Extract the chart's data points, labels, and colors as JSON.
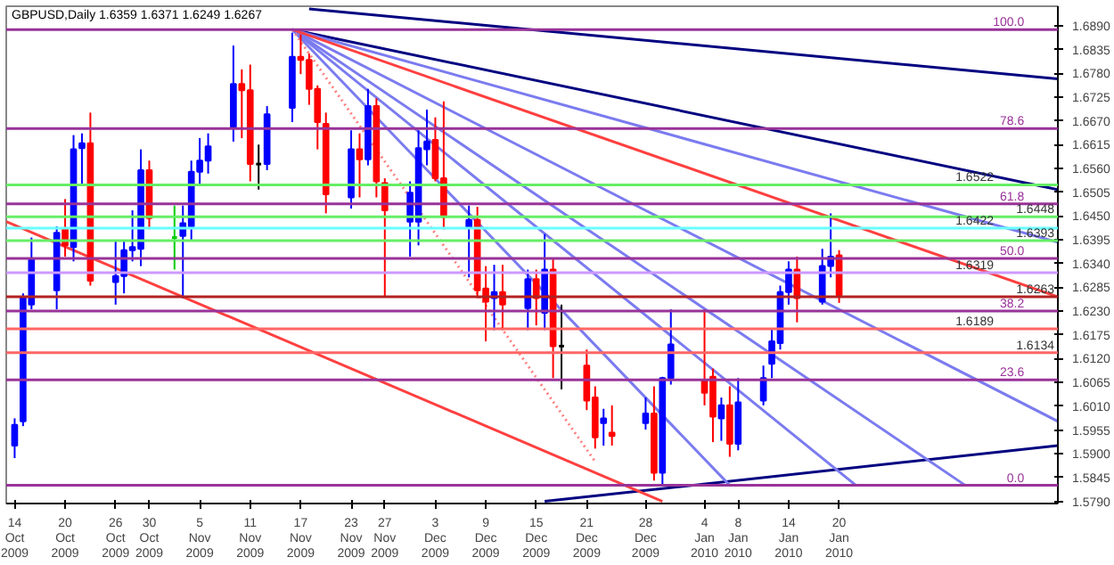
{
  "chart_data": {
    "type": "candlestick",
    "title": "GBPUSD,Daily  1.6359 1.6371 1.6249 1.6267",
    "x": [
      "2009-10-14",
      "2009-10-15",
      "2009-10-16",
      "2009-10-19",
      "2009-10-20",
      "2009-10-21",
      "2009-10-22",
      "2009-10-23",
      "2009-10-26",
      "2009-10-27",
      "2009-10-28",
      "2009-10-29",
      "2009-10-30",
      "2009-11-02",
      "2009-11-03",
      "2009-11-04",
      "2009-11-05",
      "2009-11-06",
      "2009-11-09",
      "2009-11-10",
      "2009-11-11",
      "2009-11-12",
      "2009-11-13",
      "2009-11-16",
      "2009-11-17",
      "2009-11-18",
      "2009-11-19",
      "2009-11-20",
      "2009-11-23",
      "2009-11-24",
      "2009-11-25",
      "2009-11-26",
      "2009-11-27",
      "2009-11-30",
      "2009-12-01",
      "2009-12-02",
      "2009-12-03",
      "2009-12-04",
      "2009-12-07",
      "2009-12-08",
      "2009-12-09",
      "2009-12-10",
      "2009-12-11",
      "2009-12-14",
      "2009-12-15",
      "2009-12-16",
      "2009-12-17",
      "2009-12-18",
      "2009-12-21",
      "2009-12-22",
      "2009-12-23",
      "2009-12-24",
      "2009-12-28",
      "2009-12-29",
      "2009-12-30",
      "2009-12-31",
      "2010-01-04",
      "2010-01-05",
      "2010-01-06",
      "2010-01-07",
      "2010-01-08",
      "2010-01-11",
      "2010-01-12",
      "2010-01-13",
      "2010-01-14",
      "2010-01-15",
      "2010-01-18",
      "2010-01-19",
      "2010-01-20"
    ],
    "ohlc": [
      [
        1.5919,
        1.5982,
        1.589,
        1.5967
      ],
      [
        1.5975,
        1.6271,
        1.5964,
        1.6263
      ],
      [
        1.6245,
        1.64,
        1.6234,
        1.6352
      ],
      [
        1.6278,
        1.6426,
        1.6234,
        1.6411
      ],
      [
        1.6419,
        1.6489,
        1.6356,
        1.6382
      ],
      [
        1.6378,
        1.6637,
        1.6345,
        1.6604
      ],
      [
        1.6607,
        1.6641,
        1.6522,
        1.6618
      ],
      [
        1.6618,
        1.6689,
        1.6289,
        1.63
      ],
      [
        1.6297,
        1.6393,
        1.6245,
        1.6311
      ],
      [
        1.6311,
        1.6393,
        1.6271,
        1.6371
      ],
      [
        1.6371,
        1.6463,
        1.6345,
        1.6378
      ],
      [
        1.6374,
        1.6604,
        1.6334,
        1.6556
      ],
      [
        1.6556,
        1.6578,
        1.6419,
        1.6445
      ],
      [
        1.64,
        1.6474,
        1.6326,
        1.64
      ],
      [
        1.6404,
        1.6474,
        1.626,
        1.6433
      ],
      [
        1.6426,
        1.6578,
        1.6393,
        1.6552
      ],
      [
        1.6552,
        1.663,
        1.6519,
        1.6578
      ],
      [
        1.6578,
        1.6641,
        1.6548,
        1.6611
      ],
      [
        1.6656,
        1.6844,
        1.6622,
        1.6755
      ],
      [
        1.6755,
        1.6789,
        1.663,
        1.6741
      ],
      [
        1.6741,
        1.68,
        1.653,
        1.657
      ],
      [
        1.657,
        1.6615,
        1.6511,
        1.657
      ],
      [
        1.657,
        1.6704,
        1.6556,
        1.6685
      ],
      [
        1.67,
        1.6874,
        1.6667,
        1.6818
      ],
      [
        1.6818,
        1.687,
        1.6778,
        1.6811
      ],
      [
        1.6811,
        1.6826,
        1.6707,
        1.6744
      ],
      [
        1.6744,
        1.6752,
        1.6604,
        1.6667
      ],
      [
        1.6663,
        1.6689,
        1.6456,
        1.65
      ],
      [
        1.6493,
        1.6648,
        1.6467,
        1.6604
      ],
      [
        1.6604,
        1.6641,
        1.6493,
        1.6581
      ],
      [
        1.6581,
        1.6744,
        1.6567,
        1.6704
      ],
      [
        1.6704,
        1.6722,
        1.6493,
        1.653
      ],
      [
        1.6526,
        1.6537,
        1.6263,
        1.6463
      ],
      [
        1.6437,
        1.653,
        1.6356,
        1.6504
      ],
      [
        1.6437,
        1.6648,
        1.6382,
        1.6607
      ],
      [
        1.6604,
        1.6696,
        1.6567,
        1.6622
      ],
      [
        1.6626,
        1.6678,
        1.653,
        1.6537
      ],
      [
        1.6537,
        1.6715,
        1.6419,
        1.6448
      ],
      [
        1.6422,
        1.6474,
        1.6308,
        1.6441
      ],
      [
        1.6441,
        1.6471,
        1.626,
        1.6278
      ],
      [
        1.6282,
        1.6334,
        1.616,
        1.6252
      ],
      [
        1.626,
        1.6337,
        1.6186,
        1.6274
      ],
      [
        1.6274,
        1.6337,
        1.6186,
        1.6245
      ],
      [
        1.6237,
        1.6326,
        1.6186,
        1.6304
      ],
      [
        1.6304,
        1.6326,
        1.6197,
        1.626
      ],
      [
        1.6226,
        1.6408,
        1.6186,
        1.6326
      ],
      [
        1.6326,
        1.6352,
        1.6075,
        1.6149
      ],
      [
        1.6149,
        1.6245,
        1.6049,
        1.6149
      ],
      [
        1.6104,
        1.6141,
        1.6001,
        1.6023
      ],
      [
        1.603,
        1.6056,
        1.5912,
        1.5938
      ],
      [
        1.5971,
        1.6004,
        1.5919,
        1.5982
      ],
      [
        1.5949,
        1.6012,
        1.5919,
        1.5941
      ],
      [
        1.5971,
        1.603,
        1.5956,
        1.5993
      ],
      [
        1.5993,
        1.6056,
        1.5838,
        1.5856
      ],
      [
        1.5856,
        1.6078,
        1.5827,
        1.6075
      ],
      [
        1.6075,
        1.6234,
        1.606,
        1.6153
      ],
      [
        1.6071,
        1.6234,
        1.6012,
        1.6041
      ],
      [
        1.6078,
        1.6097,
        1.5927,
        1.5986
      ],
      [
        1.5982,
        1.603,
        1.593,
        1.6012
      ],
      [
        1.6012,
        1.6056,
        1.5893,
        1.5923
      ],
      [
        1.5923,
        1.6075,
        1.5908,
        1.6019
      ],
      [
        1.6023,
        1.6104,
        1.6012,
        1.6075
      ],
      [
        1.6108,
        1.6189,
        1.6075,
        1.616
      ],
      [
        1.6156,
        1.6289,
        1.6141,
        1.6274
      ],
      [
        1.6274,
        1.6345,
        1.6245,
        1.6326
      ],
      [
        1.6326,
        1.6356,
        1.6204,
        1.626
      ],
      [
        1.6252,
        1.6374,
        1.6245,
        1.6334
      ],
      [
        1.6334,
        1.6456,
        1.6308,
        1.6356
      ],
      [
        1.6359,
        1.6371,
        1.6249,
        1.6267
      ]
    ],
    "colors": [
      "#0000ff",
      "#0000ff",
      "#0000ff",
      "#0000ff",
      "#ff0000",
      "#0000ff",
      "#0000ff",
      "#ff0000",
      "#0000ff",
      "#0000ff",
      "#0000ff",
      "#0000ff",
      "#ff0000",
      "#00cc00",
      "#0000ff",
      "#0000ff",
      "#0000ff",
      "#0000ff",
      "#0000ff",
      "#ff0000",
      "#ff0000",
      "#000000",
      "#0000ff",
      "#0000ff",
      "#ff0000",
      "#ff0000",
      "#ff0000",
      "#ff0000",
      "#0000ff",
      "#ff0000",
      "#0000ff",
      "#ff0000",
      "#ff0000",
      "#0000ff",
      "#0000ff",
      "#0000ff",
      "#ff0000",
      "#ff0000",
      "#0000ff",
      "#ff0000",
      "#ff0000",
      "#0000ff",
      "#ff0000",
      "#0000ff",
      "#ff0000",
      "#0000ff",
      "#ff0000",
      "#000000",
      "#ff0000",
      "#ff0000",
      "#0000ff",
      "#ff0000",
      "#0000ff",
      "#ff0000",
      "#0000ff",
      "#0000ff",
      "#ff0000",
      "#ff0000",
      "#0000ff",
      "#ff0000",
      "#0000ff",
      "#0000ff",
      "#0000ff",
      "#0000ff",
      "#0000ff",
      "#ff0000",
      "#0000ff",
      "#0000ff",
      "#ff0000"
    ],
    "series": [
      {
        "type": "line",
        "color": "#000080",
        "x": [
          "2009-11-18",
          "2010-02-15"
        ],
        "values": [
          1.6929,
          1.6767
        ]
      },
      {
        "type": "line",
        "color": "#000080",
        "x": [
          "2009-11-16",
          "2010-02-15"
        ],
        "values": [
          1.6881,
          1.6511
        ]
      },
      {
        "type": "line",
        "color": "#000080",
        "x": [
          "2009-12-16",
          "2010-02-15"
        ],
        "values": [
          1.579,
          1.5919
        ]
      },
      {
        "type": "line",
        "color": "#7b7bf0",
        "x": [
          "2009-11-16",
          "2010-02-15"
        ],
        "values": [
          1.6881,
          1.6389
        ]
      },
      {
        "type": "line",
        "color": "#7b7bf0",
        "x": [
          "2009-11-16",
          "2010-02-15"
        ],
        "values": [
          1.6881,
          1.5975
        ]
      },
      {
        "type": "line",
        "color": "#7b7bf0",
        "x": [
          "2009-11-16",
          "2010-02-04"
        ],
        "values": [
          1.6881,
          1.5827
        ]
      },
      {
        "type": "line",
        "color": "#7b7bf0",
        "x": [
          "2009-11-16",
          "2010-01-22"
        ],
        "values": [
          1.6881,
          1.5827
        ]
      },
      {
        "type": "line",
        "color": "#7b7bf0",
        "x": [
          "2009-11-16",
          "2010-01-07"
        ],
        "values": [
          1.6881,
          1.5827
        ]
      },
      {
        "type": "line",
        "color": "#ff4040",
        "x": [
          "2009-11-16",
          "2010-02-15"
        ],
        "values": [
          1.6881,
          1.6263
        ]
      },
      {
        "type": "line",
        "color": "#ff4040",
        "x": [
          "2009-10-13",
          "2009-12-30"
        ],
        "values": [
          1.6437,
          1.579
        ]
      },
      {
        "type": "line",
        "color": "#ff8080",
        "line_style": "dotted",
        "x": [
          "2009-11-16",
          "2009-12-22"
        ],
        "values": [
          1.6881,
          1.5882
        ]
      }
    ],
    "annotations": [
      {
        "text": "100.0",
        "x": "2010-02-11",
        "y": 1.6881
      },
      {
        "text": "78.6",
        "x": "2010-02-11",
        "y": 1.6652
      },
      {
        "text": "61.8",
        "x": "2010-02-11",
        "y": 1.6478
      },
      {
        "text": "50.0",
        "x": "2010-02-11",
        "y": 1.6352
      },
      {
        "text": "38.2",
        "x": "2010-02-11",
        "y": 1.623
      },
      {
        "text": "23.6",
        "x": "2010-02-11",
        "y": 1.6071
      },
      {
        "text": "0.0",
        "x": "2010-02-11",
        "y": 1.5827
      }
    ],
    "ref_lines": [
      {
        "axis": "y",
        "value": 1.6881,
        "color": "#993399"
      },
      {
        "axis": "y",
        "value": 1.6652,
        "color": "#993399"
      },
      {
        "axis": "y",
        "value": 1.6478,
        "color": "#993399"
      },
      {
        "axis": "y",
        "value": 1.6352,
        "color": "#993399"
      },
      {
        "axis": "y",
        "value": 1.623,
        "color": "#993399"
      },
      {
        "axis": "y",
        "value": 1.6071,
        "color": "#993399"
      },
      {
        "axis": "y",
        "value": 1.5827,
        "color": "#993399"
      },
      {
        "axis": "y",
        "value": 1.6522,
        "label": "1.6522",
        "color": "#66ee66"
      },
      {
        "axis": "y",
        "value": 1.6448,
        "label": "1.6448",
        "color": "#66ee66"
      },
      {
        "axis": "y",
        "value": 1.6422,
        "label": "1.6422",
        "color": "#66ffff"
      },
      {
        "axis": "y",
        "value": 1.6393,
        "label": "1.6393",
        "color": "#66ee66"
      },
      {
        "axis": "y",
        "value": 1.6319,
        "label": "1.6319",
        "color": "#cc99ff"
      },
      {
        "axis": "y",
        "value": 1.6263,
        "label": "1.6263",
        "color": "#b22222"
      },
      {
        "axis": "y",
        "value": 1.6189,
        "label": "1.6189",
        "color": "#ff6666"
      },
      {
        "axis": "y",
        "value": 1.6134,
        "label": "1.6134",
        "color": "#ff6666"
      }
    ],
    "xlim": [
      "2009-10-13",
      "2010-02-15"
    ],
    "ylim": [
      1.5785,
      1.6935
    ],
    "xticks": [
      {
        "value": "2009-10-14",
        "label": "14 Oct 2009"
      },
      {
        "value": "2009-10-20",
        "label": "20 Oct 2009"
      },
      {
        "value": "2009-10-26",
        "label": "26 Oct 2009"
      },
      {
        "value": "2009-10-30",
        "label": "30 Oct 2009"
      },
      {
        "value": "2009-11-05",
        "label": "5 Nov 2009"
      },
      {
        "value": "2009-11-11",
        "label": "11 Nov 2009"
      },
      {
        "value": "2009-11-17",
        "label": "17 Nov 2009"
      },
      {
        "value": "2009-11-23",
        "label": "23 Nov 2009"
      },
      {
        "value": "2009-11-27",
        "label": "27 Nov 2009"
      },
      {
        "value": "2009-12-03",
        "label": "3 Dec 2009"
      },
      {
        "value": "2009-12-09",
        "label": "9 Dec 2009"
      },
      {
        "value": "2009-12-15",
        "label": "15 Dec 2009"
      },
      {
        "value": "2009-12-21",
        "label": "21 Dec 2009"
      },
      {
        "value": "2009-12-28",
        "label": "28 Dec 2009"
      },
      {
        "value": "2010-01-04",
        "label": "4 Jan 2010"
      },
      {
        "value": "2010-01-08",
        "label": "8 Jan 2010"
      },
      {
        "value": "2010-01-14",
        "label": "14 Jan 2010"
      },
      {
        "value": "2010-01-20",
        "label": "20 Jan 2010"
      }
    ],
    "yticks": [
      {
        "value": 1.579,
        "label": "1.5790"
      },
      {
        "value": 1.5845,
        "label": "1.5845"
      },
      {
        "value": 1.59,
        "label": "1.5900"
      },
      {
        "value": 1.5955,
        "label": "1.5955"
      },
      {
        "value": 1.601,
        "label": "1.6010"
      },
      {
        "value": 1.6065,
        "label": "1.6065"
      },
      {
        "value": 1.612,
        "label": "1.6120"
      },
      {
        "value": 1.6175,
        "label": "1.6175"
      },
      {
        "value": 1.623,
        "label": "1.6230"
      },
      {
        "value": 1.6285,
        "label": "1.6285"
      },
      {
        "value": 1.634,
        "label": "1.6340"
      },
      {
        "value": 1.6395,
        "label": "1.6395"
      },
      {
        "value": 1.645,
        "label": "1.6450"
      },
      {
        "value": 1.6505,
        "label": "1.6505"
      },
      {
        "value": 1.656,
        "label": "1.6560"
      },
      {
        "value": 1.6615,
        "label": "1.6615"
      },
      {
        "value": 1.667,
        "label": "1.6670"
      },
      {
        "value": 1.6725,
        "label": "1.6725"
      },
      {
        "value": 1.678,
        "label": "1.6780"
      },
      {
        "value": 1.6835,
        "label": "1.6835"
      },
      {
        "value": 1.689,
        "label": "1.6890"
      }
    ]
  }
}
